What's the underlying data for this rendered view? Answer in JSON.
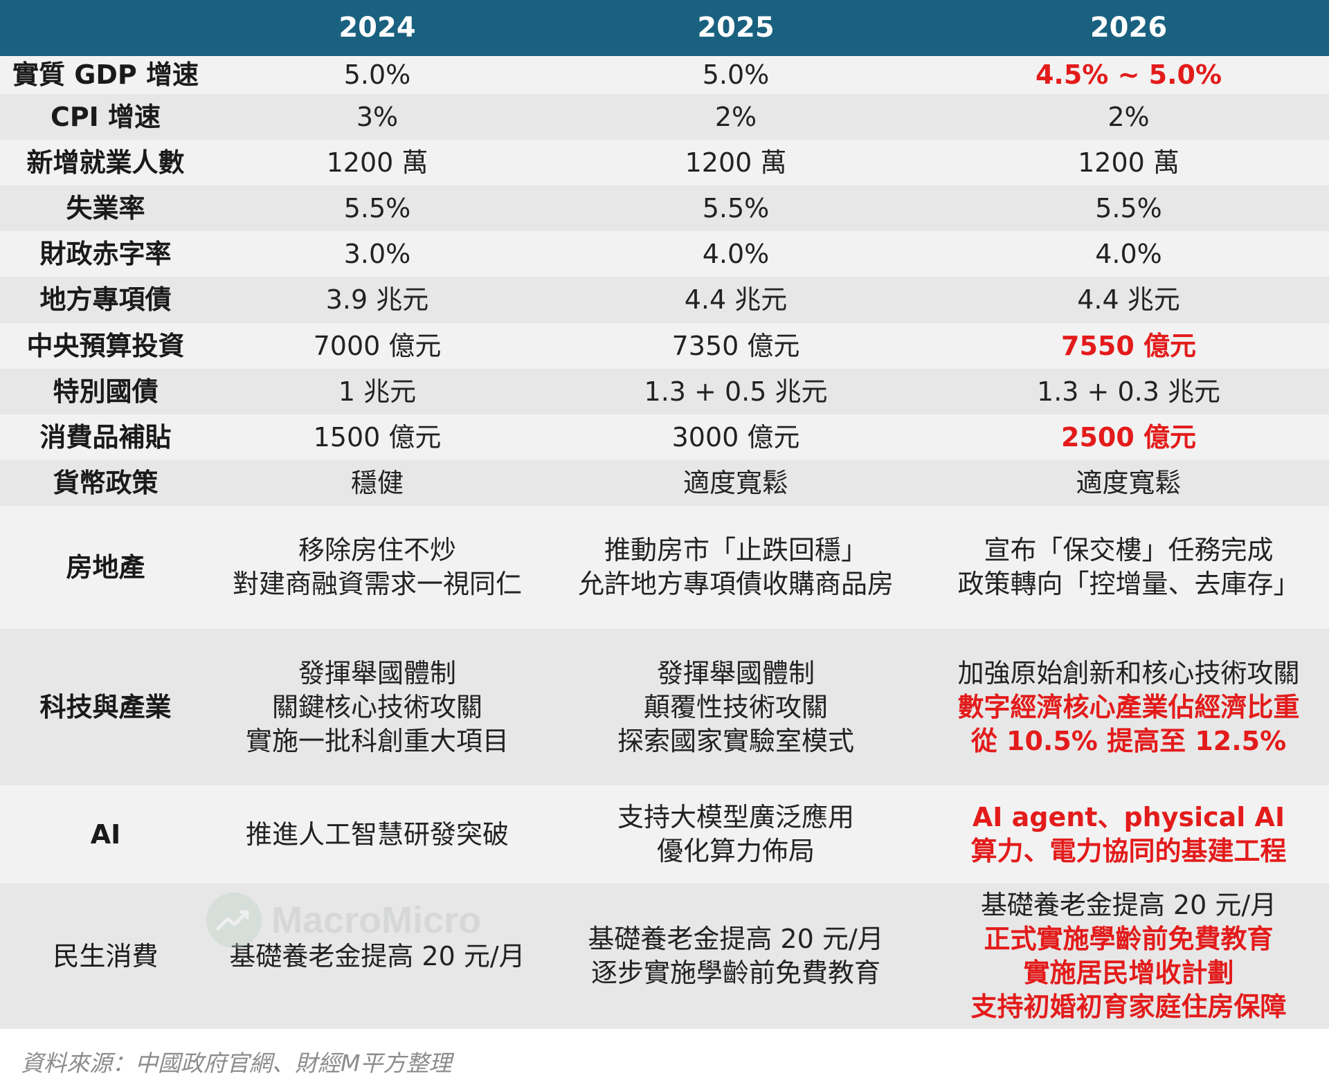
{
  "header": {
    "c1": "2024",
    "c2": "2025",
    "c3": "2026"
  },
  "rows": [
    {
      "label": "實質 GDP 增速",
      "v2024": [
        "5.0%"
      ],
      "v2025": [
        "5.0%"
      ],
      "v2026": [
        "4.5% ~ 5.0%"
      ]
    },
    {
      "label": "CPI 增速",
      "v2024": [
        "3%"
      ],
      "v2025": [
        "2%"
      ],
      "v2026": [
        "2%"
      ]
    },
    {
      "label": "新增就業人數",
      "v2024": [
        "1200 萬"
      ],
      "v2025": [
        "1200 萬"
      ],
      "v2026": [
        "1200 萬"
      ]
    },
    {
      "label": "失業率",
      "v2024": [
        "5.5%"
      ],
      "v2025": [
        "5.5%"
      ],
      "v2026": [
        "5.5%"
      ]
    },
    {
      "label": "財政赤字率",
      "v2024": [
        "3.0%"
      ],
      "v2025": [
        "4.0%"
      ],
      "v2026": [
        "4.0%"
      ]
    },
    {
      "label": "地方專項債",
      "v2024": [
        "3.9 兆元"
      ],
      "v2025": [
        "4.4 兆元"
      ],
      "v2026": [
        "4.4 兆元"
      ]
    },
    {
      "label": "中央預算投資",
      "v2024": [
        "7000 億元"
      ],
      "v2025": [
        "7350 億元"
      ],
      "v2026": [
        "7550 億元"
      ]
    },
    {
      "label": "特別國債",
      "v2024": [
        "1 兆元"
      ],
      "v2025": [
        "1.3 + 0.5 兆元"
      ],
      "v2026": [
        "1.3 + 0.3 兆元"
      ]
    },
    {
      "label": "消費品補貼",
      "v2024": [
        "1500 億元"
      ],
      "v2025": [
        "3000 億元"
      ],
      "v2026": [
        "2500 億元"
      ]
    },
    {
      "label": "貨幣政策",
      "v2024": [
        "穩健"
      ],
      "v2025": [
        "適度寬鬆"
      ],
      "v2026": [
        "適度寬鬆"
      ]
    },
    {
      "label": "房地產",
      "v2024": [
        "移除房住不炒",
        "對建商融資需求一視同仁"
      ],
      "v2025": [
        "推動房市「止跌回穩」",
        "允許地方專項債收購商品房"
      ],
      "v2026": [
        "宣布「保交樓」任務完成",
        "政策轉向「控增量、去庫存」"
      ]
    },
    {
      "label": "科技與產業",
      "v2024": [
        "發揮舉國體制",
        "關鍵核心技術攻關",
        "實施一批科創重大項目"
      ],
      "v2025": [
        "發揮舉國體制",
        "顛覆性技術攻關",
        "探索國家實驗室模式"
      ],
      "v2026": [
        "加強原始創新和核心技術攻關",
        "數字經濟核心產業佔經濟比重",
        "從 10.5% 提高至 12.5%"
      ]
    },
    {
      "label": "AI",
      "v2024": [
        "推進人工智慧研發突破"
      ],
      "v2025": [
        "支持大模型廣泛應用",
        "優化算力佈局"
      ],
      "v2026": [
        "AI agent、physical AI",
        "算力、電力協同的基建工程"
      ]
    },
    {
      "label": "民生消費",
      "v2024": [
        "基礎養老金提高 20 元/月"
      ],
      "v2025": [
        "基礎養老金提高 20 元/月",
        "逐步實施學齡前免費教育"
      ],
      "v2026": [
        "基礎養老金提高 20 元/月",
        "正式實施學齡前免費教育",
        "實施居民增收計劃",
        "支持初婚初育家庭住房保障"
      ]
    }
  ],
  "watermark": {
    "text": "MacroMicro",
    "icon": "chart-line-icon"
  },
  "footer": {
    "source": "資料來源：中國政府官網、財經M平方整理"
  },
  "colors": {
    "header_bg": "#1a6180",
    "highlight": "#e31b1b",
    "row_light": "#f2f2f2",
    "row_dark": "#e7e7e7"
  }
}
